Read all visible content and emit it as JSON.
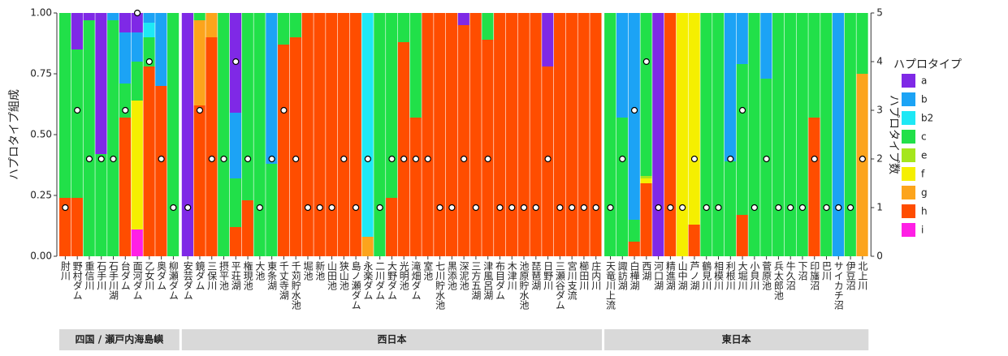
{
  "chart_data": {
    "type": "stacked_bar",
    "ylabel": "ハプロタイプ組成",
    "y2label": "ハプロタイプ数",
    "legend_title": "ハプロタイプ",
    "facets": [
      {
        "name": "四国 / 瀬戸内海島嶼",
        "categories": [
          "肘川",
          "野村ダム",
          "重信川",
          "石手川",
          "石手川湖",
          "台ダム",
          "面河ダム",
          "乙女川",
          "奥ダム",
          "柳瀬ダム"
        ]
      },
      {
        "name": "西日本",
        "categories": [
          "安芸ダム",
          "鏡ダム",
          "三保川",
          "摂平池",
          "平荘湖",
          "権現池",
          "大池",
          "東条湖",
          "千丈寺湖",
          "千苅貯水池",
          "堀池",
          "新池",
          "山田池",
          "狭山池",
          "島ノ瀬ダム",
          "永楽ダム",
          "二川ダム",
          "大野ダム",
          "光明池",
          "滝畑ダム",
          "室池",
          "七川貯水池",
          "黒添池",
          "深泥池",
          "三方五湖",
          "津風呂湖",
          "布目ダム",
          "木津川",
          "池原貯水池",
          "琵琶湖",
          "日野川",
          "三瀬谷ダム",
          "宮川支流",
          "櫛田川",
          "庄内川"
        ]
      },
      {
        "name": "東日本",
        "categories": [
          "天竜川上流",
          "諏訪湖",
          "白樺湖",
          "西湖",
          "河口湖",
          "精進湖",
          "山中湖",
          "芦ノ湖",
          "鶴見川",
          "相模川",
          "利根川",
          "大堀川",
          "小貝川",
          "菅原池",
          "兵太郎池",
          "牛久沼",
          "下沼",
          "印旛沼",
          "巴川",
          "サイカチ沼",
          "伊豆沼",
          "北上川"
        ]
      }
    ],
    "series": [
      {
        "name": "a",
        "color": "#7f29e6",
        "values": [
          0,
          0.15,
          0.03,
          0.58,
          0,
          0.08,
          0.08,
          0,
          0,
          0,
          1,
          0,
          0,
          0,
          0.41,
          0,
          0,
          0,
          0,
          0,
          0,
          0,
          0,
          0,
          0,
          0,
          0,
          0,
          0,
          0,
          0,
          0,
          0,
          0.05,
          0,
          0,
          0,
          0,
          0,
          0,
          0.22,
          0,
          0,
          0,
          0,
          0,
          0,
          0,
          0,
          1,
          0,
          0,
          0,
          0,
          0,
          0,
          0,
          0,
          0,
          0,
          0,
          0,
          0,
          0,
          0,
          0,
          0
        ]
      },
      {
        "name": "b",
        "color": "#1ca3f5",
        "values": [
          0,
          0,
          0,
          0,
          0.03,
          0.21,
          0.12,
          0.04,
          0.3,
          0,
          0,
          0,
          0,
          0,
          0.27,
          0,
          0,
          0.62,
          0,
          0,
          0,
          0,
          0,
          0,
          0,
          0,
          0,
          0,
          0,
          0,
          0,
          0,
          0,
          0,
          0,
          0,
          0,
          0,
          0,
          0,
          0,
          0,
          0,
          0,
          0,
          0,
          0.43,
          0.85,
          0,
          0,
          0,
          0,
          0,
          0,
          0,
          0.61,
          0.21,
          0,
          0.27,
          0,
          0,
          0,
          0,
          0,
          1,
          0,
          0
        ]
      },
      {
        "name": "b2",
        "color": "#1ee8f5",
        "values": [
          0,
          0,
          0,
          0,
          0,
          0,
          0,
          0.06,
          0,
          0,
          0,
          0,
          0,
          0,
          0,
          0,
          0,
          0,
          0,
          0,
          0,
          0,
          0,
          0,
          0,
          0.92,
          0,
          0,
          0,
          0,
          0,
          0,
          0,
          0,
          0,
          0,
          0,
          0,
          0,
          0,
          0,
          0,
          0,
          0,
          0,
          0,
          0,
          0,
          0,
          0,
          0,
          0,
          0,
          0,
          0,
          0,
          0,
          0,
          0,
          0,
          0,
          0,
          0,
          0,
          0,
          0,
          0
        ]
      },
      {
        "name": "c",
        "color": "#21e049",
        "values": [
          0.76,
          0.61,
          0.97,
          0.42,
          0.97,
          0.14,
          0.16,
          0.12,
          0,
          1,
          0,
          0.03,
          0,
          1,
          0.2,
          0.77,
          1,
          0.38,
          0.13,
          0.1,
          0,
          0,
          0,
          0,
          0,
          0,
          1,
          0.76,
          0.12,
          0.43,
          0,
          0,
          0,
          0,
          0,
          0.11,
          0,
          0,
          0,
          0,
          0,
          0,
          0,
          0,
          0,
          1,
          0.57,
          0.09,
          0.67,
          0,
          0,
          0,
          0,
          1,
          1,
          0.39,
          0.62,
          1,
          0.73,
          1,
          1,
          1,
          0.43,
          1,
          0,
          1,
          0.25
        ]
      },
      {
        "name": "e",
        "color": "#a5e61c",
        "values": [
          0,
          0,
          0,
          0,
          0,
          0,
          0,
          0,
          0,
          0,
          0,
          0,
          0,
          0,
          0,
          0,
          0,
          0,
          0,
          0,
          0,
          0,
          0,
          0,
          0,
          0,
          0,
          0,
          0,
          0,
          0,
          0,
          0,
          0,
          0,
          0,
          0,
          0,
          0,
          0,
          0,
          0,
          0,
          0,
          0,
          0,
          0,
          0,
          0.01,
          0,
          0,
          0,
          0,
          0,
          0,
          0,
          0,
          0,
          0,
          0,
          0,
          0,
          0,
          0,
          0,
          0,
          0
        ]
      },
      {
        "name": "f",
        "color": "#f5ef00",
        "values": [
          0,
          0,
          0,
          0,
          0,
          0,
          0.53,
          0,
          0,
          0,
          0,
          0,
          0,
          0,
          0,
          0,
          0,
          0,
          0,
          0,
          0,
          0,
          0,
          0,
          0,
          0,
          0,
          0,
          0,
          0,
          0,
          0,
          0,
          0,
          0,
          0,
          0,
          0,
          0,
          0,
          0,
          0,
          0,
          0,
          0,
          0,
          0,
          0,
          0.02,
          0,
          0,
          1,
          0.87,
          0,
          0,
          0,
          0,
          0,
          0,
          0,
          0,
          0,
          0,
          0,
          0,
          0,
          0
        ]
      },
      {
        "name": "g",
        "color": "#fca41c",
        "values": [
          0,
          0,
          0,
          0,
          0,
          0,
          0,
          0,
          0,
          0,
          0,
          0.35,
          0.1,
          0,
          0,
          0,
          0,
          0,
          0,
          0,
          0,
          0,
          0,
          0,
          0,
          0.08,
          0,
          0,
          0,
          0,
          0,
          0,
          0,
          0,
          0,
          0,
          0,
          0,
          0,
          0,
          0,
          0,
          0,
          0,
          0,
          0,
          0,
          0,
          0,
          0,
          0,
          0,
          0,
          0,
          0,
          0,
          0,
          0,
          0,
          0,
          0,
          0,
          0,
          0,
          0,
          0,
          0.75
        ]
      },
      {
        "name": "h",
        "color": "#ff4d00",
        "values": [
          0.24,
          0.24,
          0,
          0,
          0,
          0.57,
          0,
          0.78,
          0.7,
          0,
          0,
          0.62,
          0.9,
          0,
          0.12,
          0.23,
          0,
          0,
          0.87,
          0.9,
          1,
          1,
          1,
          1,
          1,
          0,
          0,
          0.24,
          0.88,
          0.57,
          1,
          1,
          1,
          0.95,
          1,
          0.89,
          1,
          1,
          1,
          1,
          0.78,
          1,
          1,
          1,
          1,
          0,
          0,
          0.06,
          0.3,
          0,
          1,
          0,
          0.13,
          0,
          0,
          0,
          0.17,
          0,
          0,
          0,
          0,
          0,
          0.57,
          0,
          0,
          0,
          0
        ]
      },
      {
        "name": "i",
        "color": "#ff1fe5",
        "values": [
          0,
          0,
          0,
          0,
          0,
          0,
          0.11,
          0,
          0,
          0,
          0,
          0,
          0,
          0,
          0,
          0,
          0,
          0,
          0,
          0,
          0,
          0,
          0,
          0,
          0,
          0,
          0,
          0,
          0,
          0,
          0,
          0,
          0,
          0,
          0,
          0,
          0,
          0,
          0,
          0,
          0,
          0,
          0,
          0,
          0,
          0,
          0,
          0,
          0,
          0,
          0,
          0,
          0,
          0,
          0,
          0,
          0,
          0,
          0,
          0,
          0,
          0,
          0,
          0,
          0,
          0,
          0
        ]
      }
    ],
    "counts": {
      "axis": "y2",
      "values": [
        1,
        3,
        2,
        2,
        2,
        3,
        5,
        4,
        2,
        1,
        1,
        3,
        2,
        2,
        4,
        2,
        1,
        2,
        3,
        2,
        1,
        1,
        1,
        2,
        1,
        2,
        1,
        2,
        2,
        2,
        2,
        1,
        1,
        2,
        1,
        2,
        1,
        1,
        1,
        1,
        2,
        1,
        1,
        1,
        1,
        1,
        2,
        3,
        4,
        1,
        1,
        1,
        2,
        1,
        1,
        2,
        3,
        1,
        2,
        1,
        1,
        1,
        2,
        1,
        1,
        1,
        2
      ]
    },
    "ylim": [
      0,
      1
    ],
    "yticks": [
      {
        "value": 0,
        "label": "0.00"
      },
      {
        "value": 0.25,
        "label": "0.25"
      },
      {
        "value": 0.5,
        "label": "0.50"
      },
      {
        "value": 0.75,
        "label": "0.75"
      },
      {
        "value": 1,
        "label": "1.00"
      }
    ],
    "y2lim": [
      0,
      5
    ],
    "y2ticks": [
      0,
      1,
      2,
      3,
      4,
      5
    ],
    "legend": "right"
  }
}
